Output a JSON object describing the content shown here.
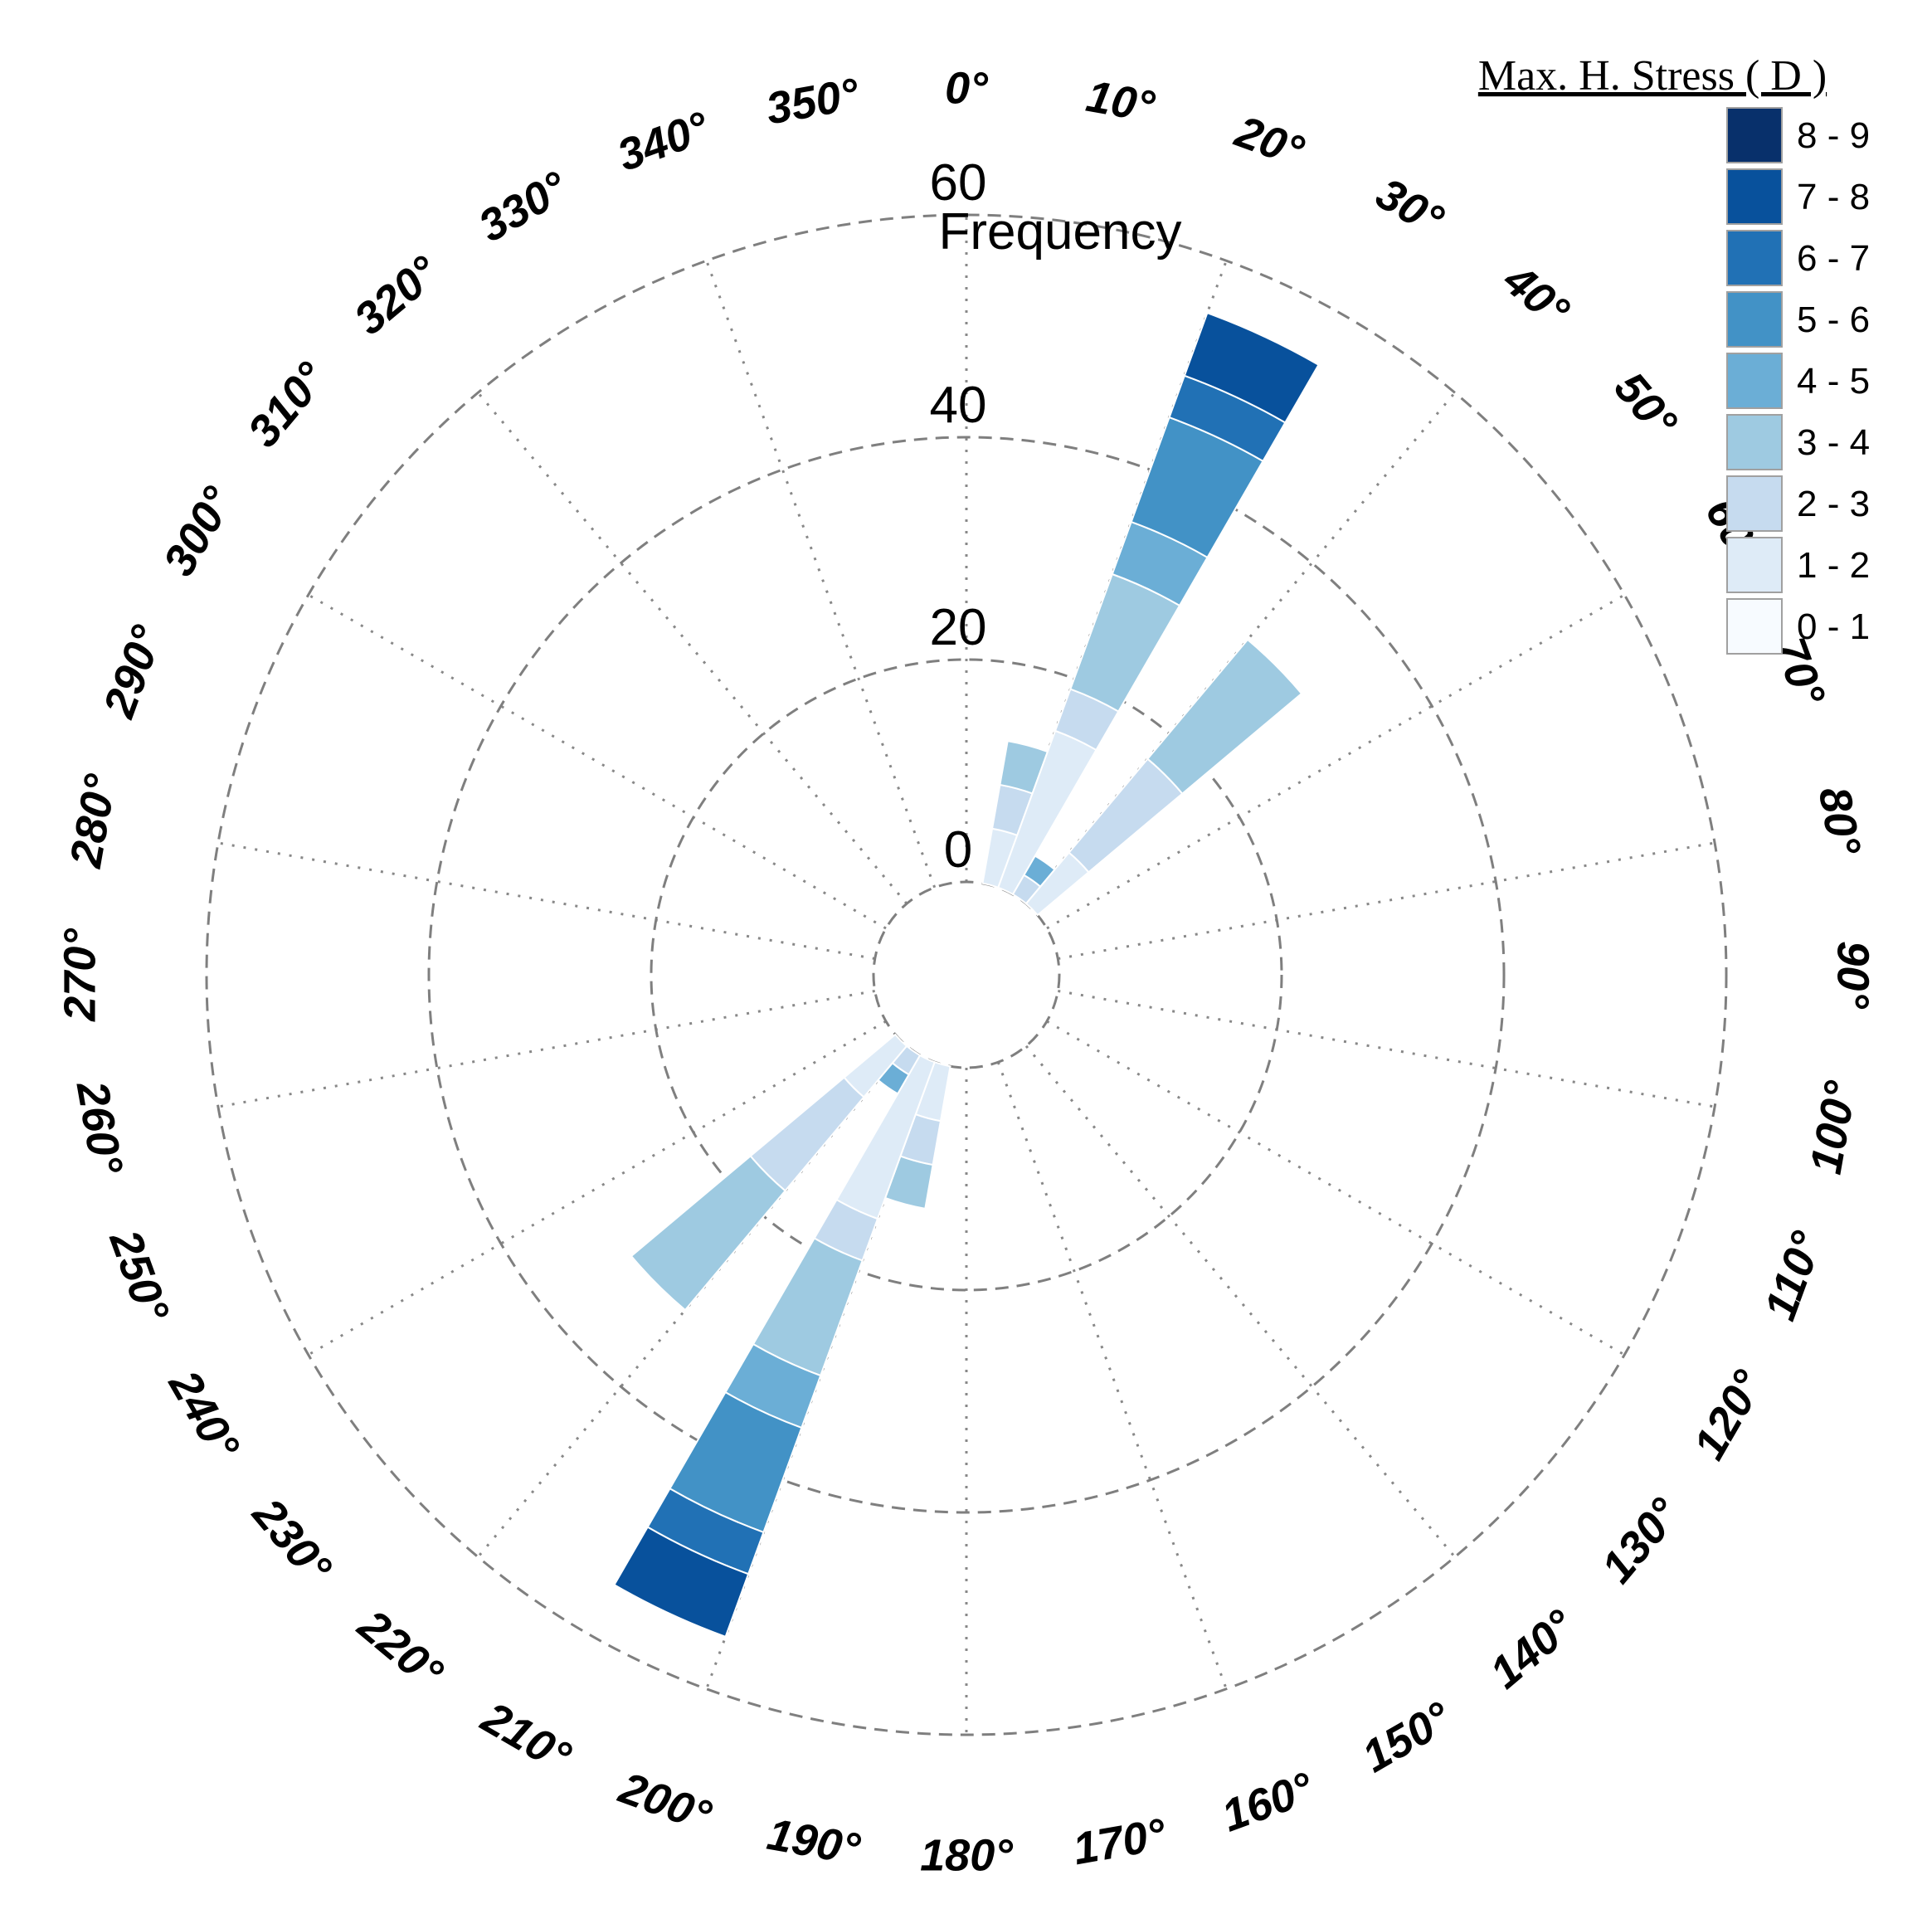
{
  "chart_data": {
    "type": "rose",
    "radial_axis_title": "Frequency",
    "radial_ticks": [
      "0",
      "20",
      "40",
      "60"
    ],
    "radial_range": [
      0,
      60
    ],
    "angle_labels": [
      "0°",
      "10°",
      "20°",
      "30°",
      "40°",
      "50°",
      "60°",
      "70°",
      "80°",
      "90°",
      "100°",
      "110°",
      "120°",
      "130°",
      "140°",
      "150°",
      "160°",
      "170°",
      "180°",
      "190°",
      "200°",
      "210°",
      "220°",
      "230°",
      "240°",
      "250°",
      "260°",
      "270°",
      "280°",
      "290°",
      "300°",
      "310°",
      "320°",
      "330°",
      "340°",
      "350°"
    ],
    "grid": true,
    "legend": {
      "title": "Max. H. Stress ( D )",
      "placement": "top-right",
      "classes": [
        {
          "label": "8 - 9",
          "color": "#08306b"
        },
        {
          "label": "7 - 8",
          "color": "#08519c"
        },
        {
          "label": "6 - 7",
          "color": "#2171b5"
        },
        {
          "label": "5 - 6",
          "color": "#4292c6"
        },
        {
          "label": "4 - 5",
          "color": "#6baed6"
        },
        {
          "label": "3 - 4",
          "color": "#9ecae1"
        },
        {
          "label": "2 - 3",
          "color": "#c6dbef"
        },
        {
          "label": "1 - 2",
          "color": "#deebf7"
        },
        {
          "label": "0 - 1",
          "color": "#f7fbff"
        }
      ]
    },
    "bins": [
      {
        "direction": 15,
        "segments": [
          {
            "class": "1 - 2",
            "value": 5
          },
          {
            "class": "2 - 3",
            "value": 4
          },
          {
            "class": "3 - 4",
            "value": 4
          }
        ]
      },
      {
        "direction": 25,
        "segments": [
          {
            "class": "1 - 2",
            "value": 15
          },
          {
            "class": "2 - 3",
            "value": 4
          },
          {
            "class": "3 - 4",
            "value": 11
          },
          {
            "class": "4 - 5",
            "value": 5
          },
          {
            "class": "5 - 6",
            "value": 10
          },
          {
            "class": "6 - 7",
            "value": 4
          },
          {
            "class": "7 - 8",
            "value": 6
          }
        ]
      },
      {
        "direction": 35,
        "segments": [
          {
            "class": "2 - 3",
            "value": 2
          },
          {
            "class": "4 - 5",
            "value": 2
          }
        ]
      },
      {
        "direction": 45,
        "segments": [
          {
            "class": "1 - 2",
            "value": 6
          },
          {
            "class": "2 - 3",
            "value": 11
          },
          {
            "class": "3 - 4",
            "value": 14
          }
        ]
      },
      {
        "direction": 195,
        "segments": [
          {
            "class": "1 - 2",
            "value": 5
          },
          {
            "class": "2 - 3",
            "value": 4
          },
          {
            "class": "3 - 4",
            "value": 4
          }
        ]
      },
      {
        "direction": 205,
        "segments": [
          {
            "class": "1 - 2",
            "value": 15
          },
          {
            "class": "2 - 3",
            "value": 4
          },
          {
            "class": "3 - 4",
            "value": 11
          },
          {
            "class": "4 - 5",
            "value": 5
          },
          {
            "class": "5 - 6",
            "value": 10
          },
          {
            "class": "6 - 7",
            "value": 4
          },
          {
            "class": "7 - 8",
            "value": 6
          }
        ]
      },
      {
        "direction": 215,
        "segments": [
          {
            "class": "2 - 3",
            "value": 2
          },
          {
            "class": "4 - 5",
            "value": 2
          }
        ]
      },
      {
        "direction": 225,
        "segments": [
          {
            "class": "1 - 2",
            "value": 6
          },
          {
            "class": "2 - 3",
            "value": 11
          },
          {
            "class": "3 - 4",
            "value": 14
          }
        ]
      }
    ]
  }
}
